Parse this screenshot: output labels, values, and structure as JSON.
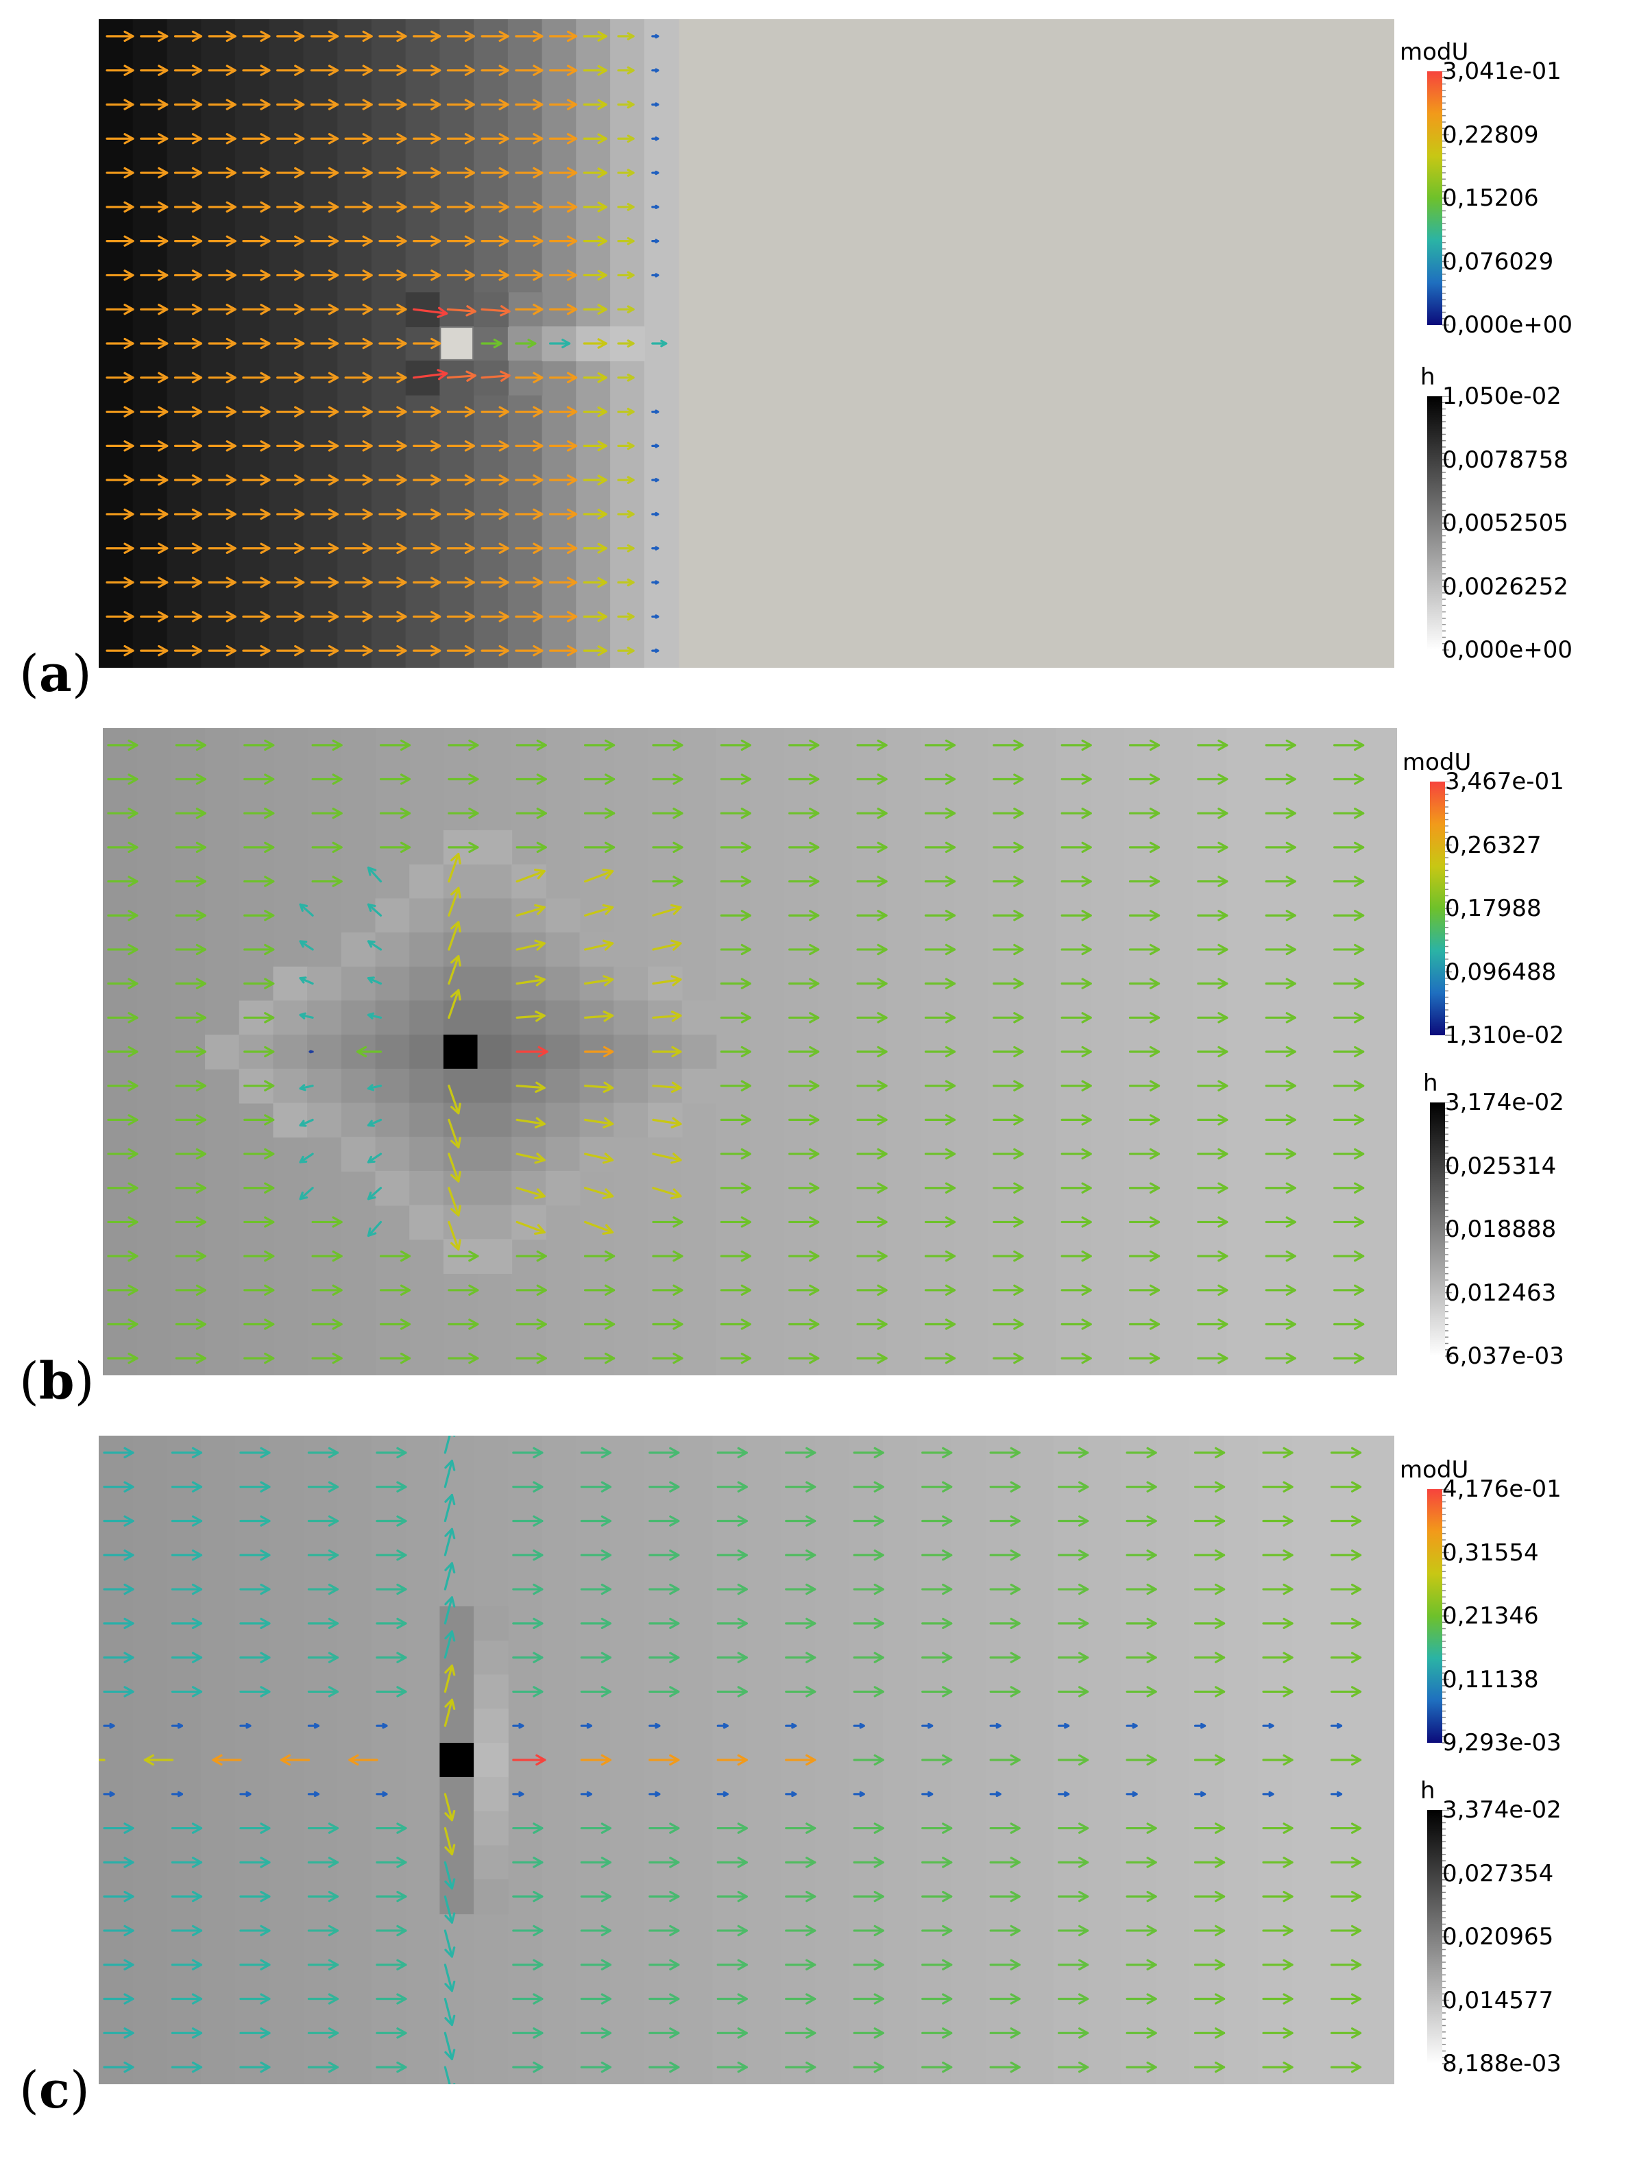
{
  "figure": {
    "panels": [
      {
        "label": "a",
        "legend_speed": {
          "title": "modU",
          "ticks": [
            "3,041e-01",
            "0,22809",
            "0,15206",
            "0,076029",
            "0,000e+00"
          ]
        },
        "legend_depth": {
          "title": "h",
          "ticks": [
            "1,050e-02",
            "0,0078758",
            "0,0052505",
            "0,0026252",
            "0,000e+00"
          ]
        }
      },
      {
        "label": "b",
        "legend_speed": {
          "title": "modU",
          "ticks": [
            "3,467e-01",
            "0,26327",
            "0,17988",
            "0,096488",
            "1,310e-02"
          ]
        },
        "legend_depth": {
          "title": "h",
          "ticks": [
            "3,174e-02",
            "0,025314",
            "0,018888",
            "0,012463",
            "6,037e-03"
          ]
        }
      },
      {
        "label": "c",
        "legend_speed": {
          "title": "modU",
          "ticks": [
            "4,176e-01",
            "0,31554",
            "0,21346",
            "0,11138",
            "9,293e-03"
          ]
        },
        "legend_depth": {
          "title": "h",
          "ticks": [
            "3,374e-02",
            "0,027354",
            "0,020965",
            "0,014577",
            "8,188e-03"
          ]
        }
      }
    ]
  },
  "colors": {
    "speed_map": [
      "#0b0a7a",
      "#1f6fbf",
      "#2bb3a5",
      "#6ec12b",
      "#c8c714",
      "#f29a1a",
      "#f6433d"
    ],
    "depth_map": [
      "#ffffff",
      "#000000"
    ],
    "dry_bed": "#c8c6bf"
  }
}
